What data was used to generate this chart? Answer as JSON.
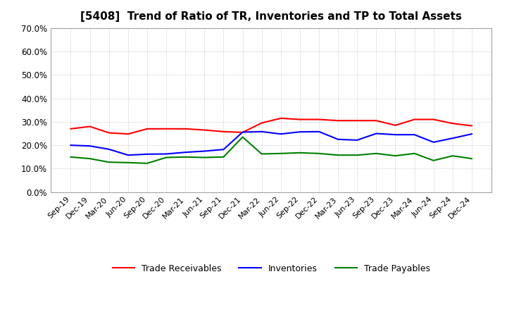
{
  "title": "[5408]  Trend of Ratio of TR, Inventories and TP to Total Assets",
  "x_labels": [
    "Sep-19",
    "Dec-19",
    "Mar-20",
    "Jun-20",
    "Sep-20",
    "Dec-20",
    "Mar-21",
    "Jun-21",
    "Sep-21",
    "Dec-21",
    "Mar-22",
    "Jun-22",
    "Sep-22",
    "Dec-22",
    "Mar-23",
    "Jun-23",
    "Sep-23",
    "Dec-23",
    "Mar-24",
    "Jun-24",
    "Sep-24",
    "Dec-24"
  ],
  "trade_receivables": [
    0.27,
    0.28,
    0.253,
    0.248,
    0.27,
    0.27,
    0.27,
    0.265,
    0.258,
    0.255,
    0.295,
    0.315,
    0.31,
    0.31,
    0.305,
    0.305,
    0.305,
    0.285,
    0.31,
    0.31,
    0.293,
    0.283
  ],
  "inventories": [
    0.2,
    0.197,
    0.183,
    0.158,
    0.162,
    0.163,
    0.17,
    0.175,
    0.182,
    0.256,
    0.258,
    0.248,
    0.257,
    0.258,
    0.225,
    0.222,
    0.25,
    0.245,
    0.245,
    0.213,
    0.23,
    0.248
  ],
  "trade_payables": [
    0.15,
    0.143,
    0.128,
    0.126,
    0.123,
    0.148,
    0.15,
    0.148,
    0.15,
    0.235,
    0.163,
    0.165,
    0.168,
    0.165,
    0.158,
    0.158,
    0.165,
    0.155,
    0.165,
    0.135,
    0.155,
    0.143
  ],
  "colors": {
    "trade_receivables": "#FF0000",
    "inventories": "#0000FF",
    "trade_payables": "#008000"
  },
  "ylim": [
    0.0,
    0.7
  ],
  "yticks": [
    0.0,
    0.1,
    0.2,
    0.3,
    0.4,
    0.5,
    0.6,
    0.7
  ],
  "legend_labels": [
    "Trade Receivables",
    "Inventories",
    "Trade Payables"
  ],
  "background_color": "#FFFFFF",
  "grid_color": "#BBBBBB"
}
